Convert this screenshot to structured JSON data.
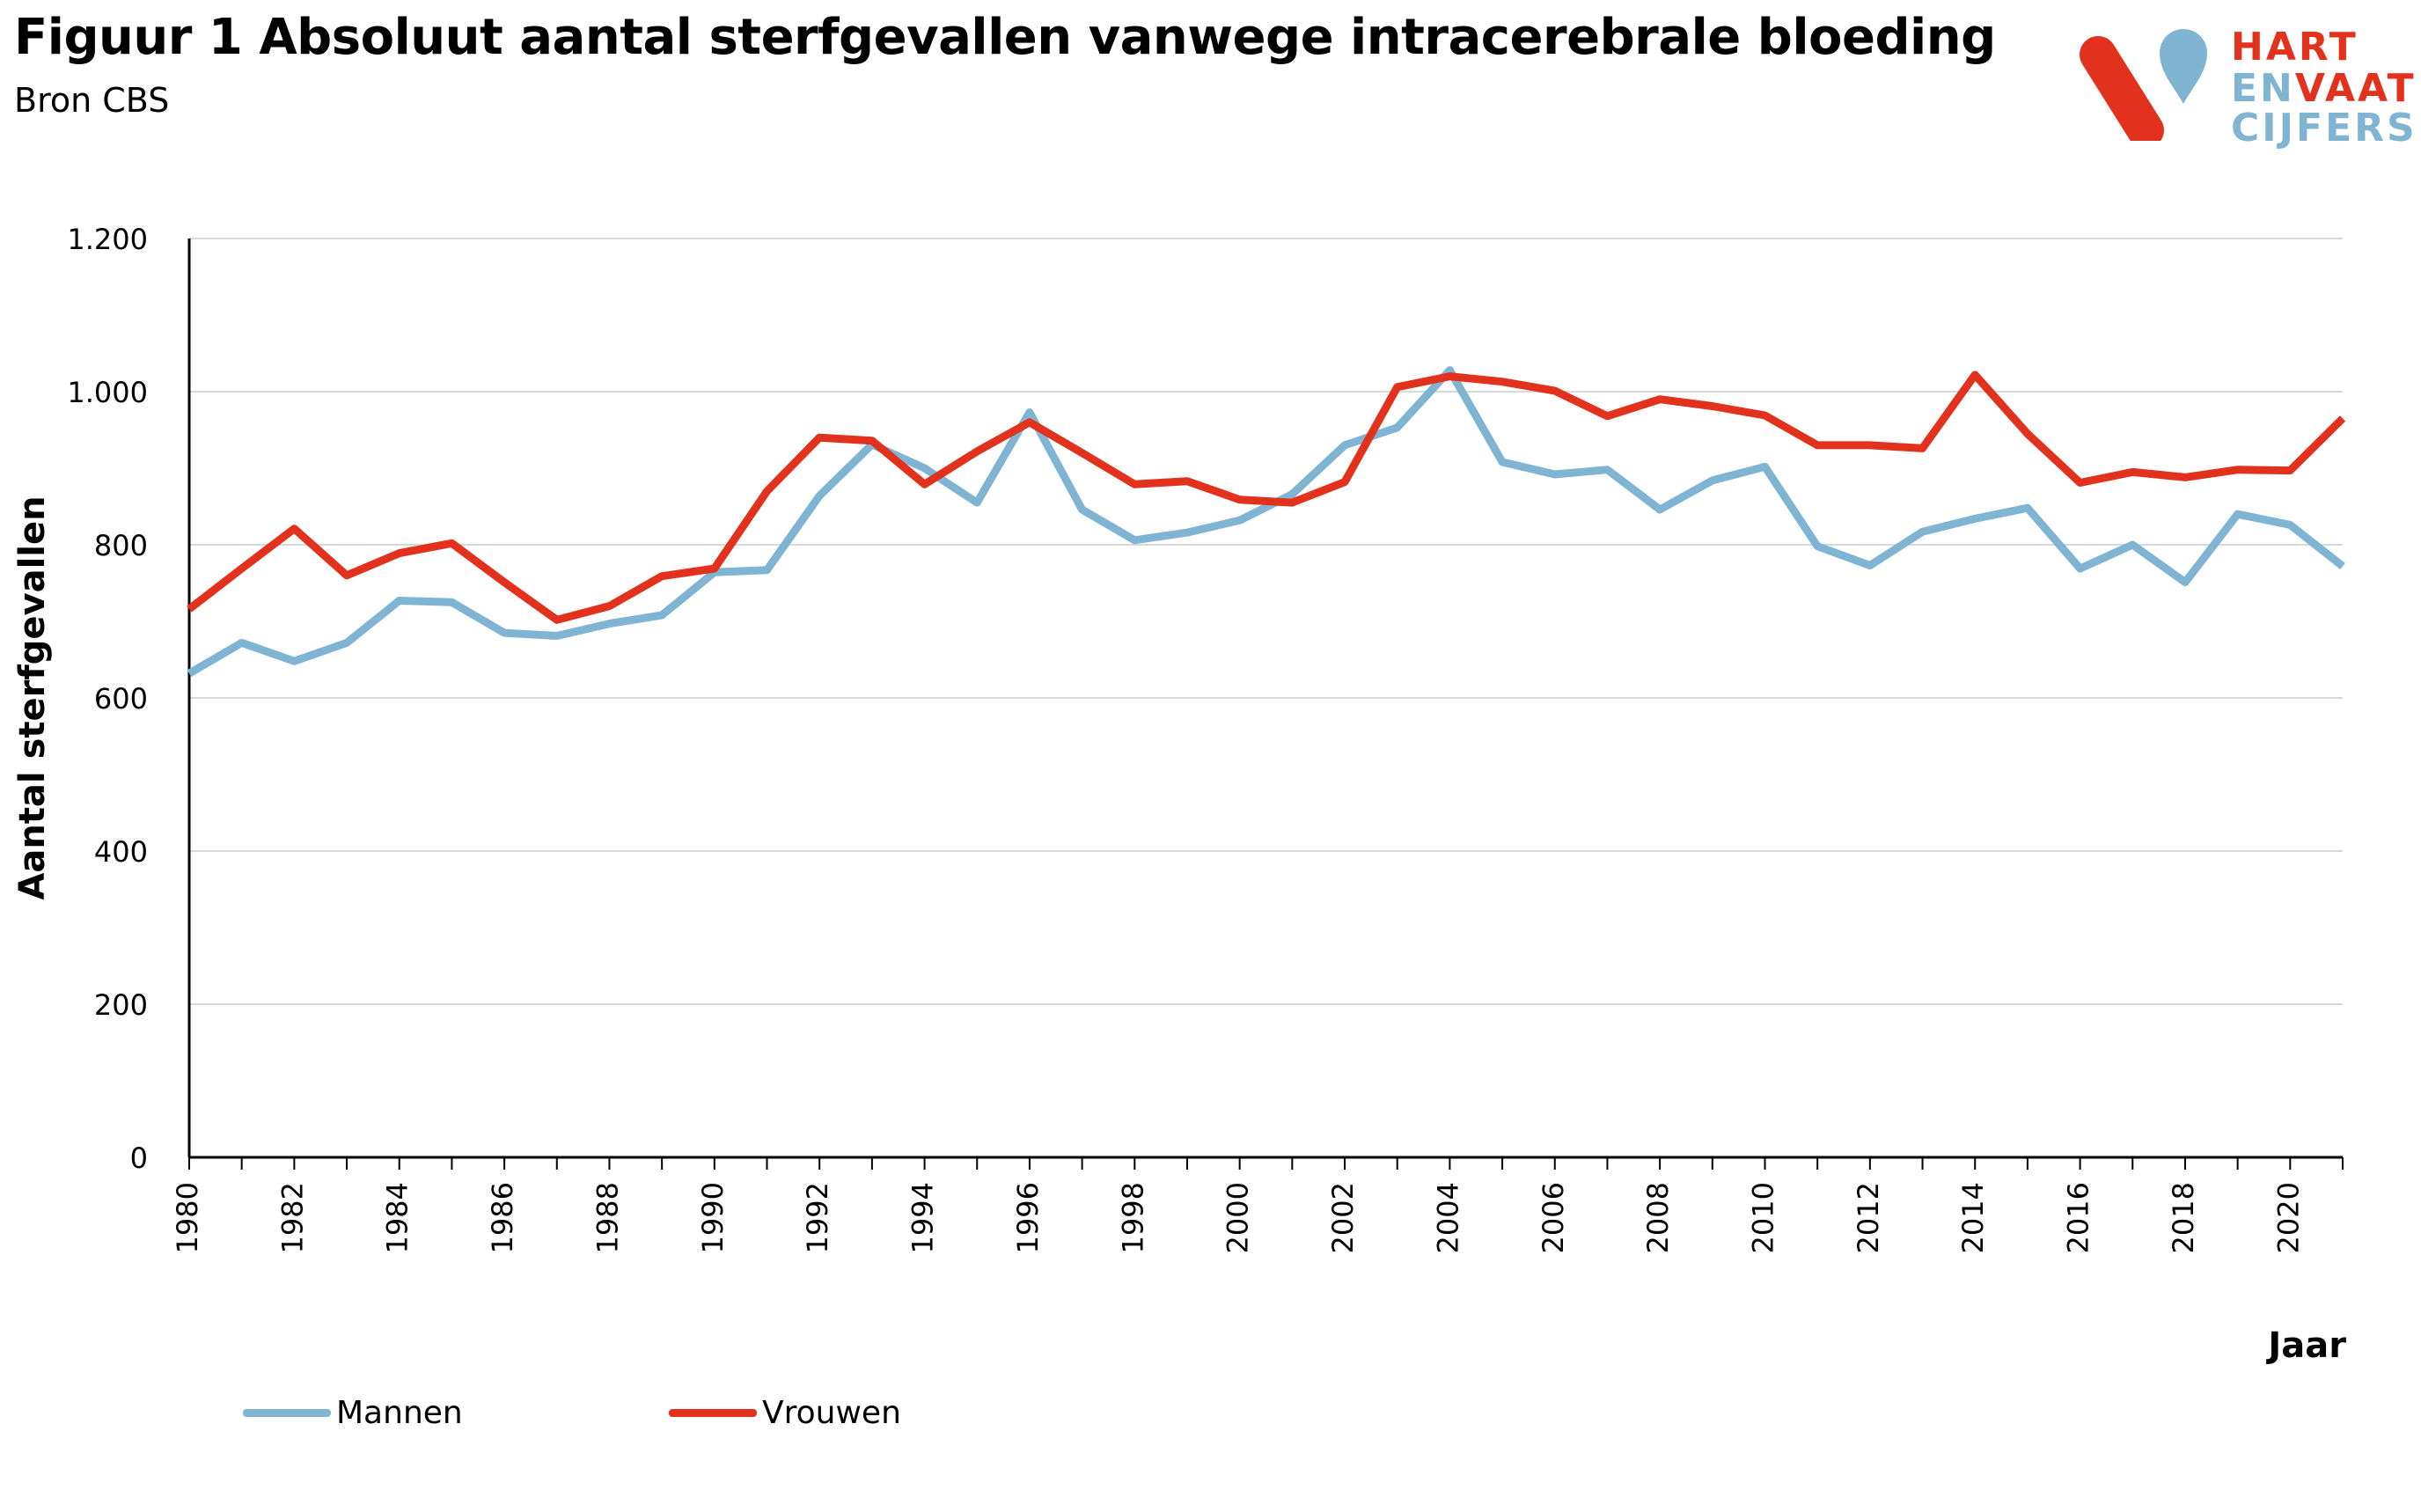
{
  "header": {
    "title": "Figuur 1 Absoluut aantal sterfgevallen vanwege intracerebrale bloeding",
    "subtitle": "Bron CBS"
  },
  "logo": {
    "line1_a": "HART",
    "line2_a": "EN",
    "line2_b": "VAAT",
    "line3_a": "CIJFERS",
    "colors": {
      "red": "#e2321e",
      "blue": "#7fb4d3"
    }
  },
  "chart_data": {
    "type": "line",
    "title": "",
    "xlabel": "Jaar",
    "ylabel": "Aantal sterfgevallen",
    "ylim": [
      0,
      1200
    ],
    "yticks": [
      0,
      200,
      400,
      600,
      800,
      1000,
      1200
    ],
    "ytick_labels": [
      "0",
      "200",
      "400",
      "600",
      "800",
      "1.000",
      "1.200"
    ],
    "xtick_labels": [
      "1980",
      "1982",
      "1984",
      "1986",
      "1988",
      "1990",
      "1992",
      "1994",
      "1996",
      "1998",
      "2000",
      "2002",
      "2004",
      "2006",
      "2008",
      "2010",
      "2012",
      "2014",
      "2016",
      "2018",
      "2020"
    ],
    "grid": true,
    "legend_position": "bottom-left",
    "x": [
      1980,
      1981,
      1982,
      1983,
      1984,
      1985,
      1986,
      1987,
      1988,
      1989,
      1990,
      1991,
      1992,
      1993,
      1994,
      1995,
      1996,
      1997,
      1998,
      1999,
      2000,
      2001,
      2002,
      2003,
      2004,
      2005,
      2006,
      2007,
      2008,
      2009,
      2010,
      2011,
      2012,
      2013,
      2014,
      2015,
      2016,
      2017,
      2018,
      2019,
      2020,
      2021
    ],
    "series": [
      {
        "name": "Mannen",
        "color": "#7fb4d3",
        "values": [
          632,
          672,
          648,
          672,
          727,
          725,
          685,
          681,
          697,
          708,
          764,
          767,
          864,
          931,
          900,
          855,
          973,
          846,
          806,
          816,
          832,
          866,
          930,
          953,
          1028,
          908,
          892,
          898,
          846,
          884,
          902,
          798,
          773,
          817,
          834,
          848,
          769,
          800,
          751,
          840,
          826,
          772
        ]
      },
      {
        "name": "Vrouwen",
        "color": "#e2321e",
        "values": [
          716,
          769,
          821,
          760,
          789,
          802,
          751,
          702,
          720,
          759,
          769,
          870,
          940,
          936,
          879,
          922,
          960,
          920,
          879,
          883,
          859,
          855,
          882,
          1006,
          1020,
          1013,
          1001,
          968,
          990,
          981,
          969,
          930,
          930,
          926,
          1022,
          945,
          881,
          895,
          888,
          898,
          897,
          965
        ]
      }
    ]
  }
}
